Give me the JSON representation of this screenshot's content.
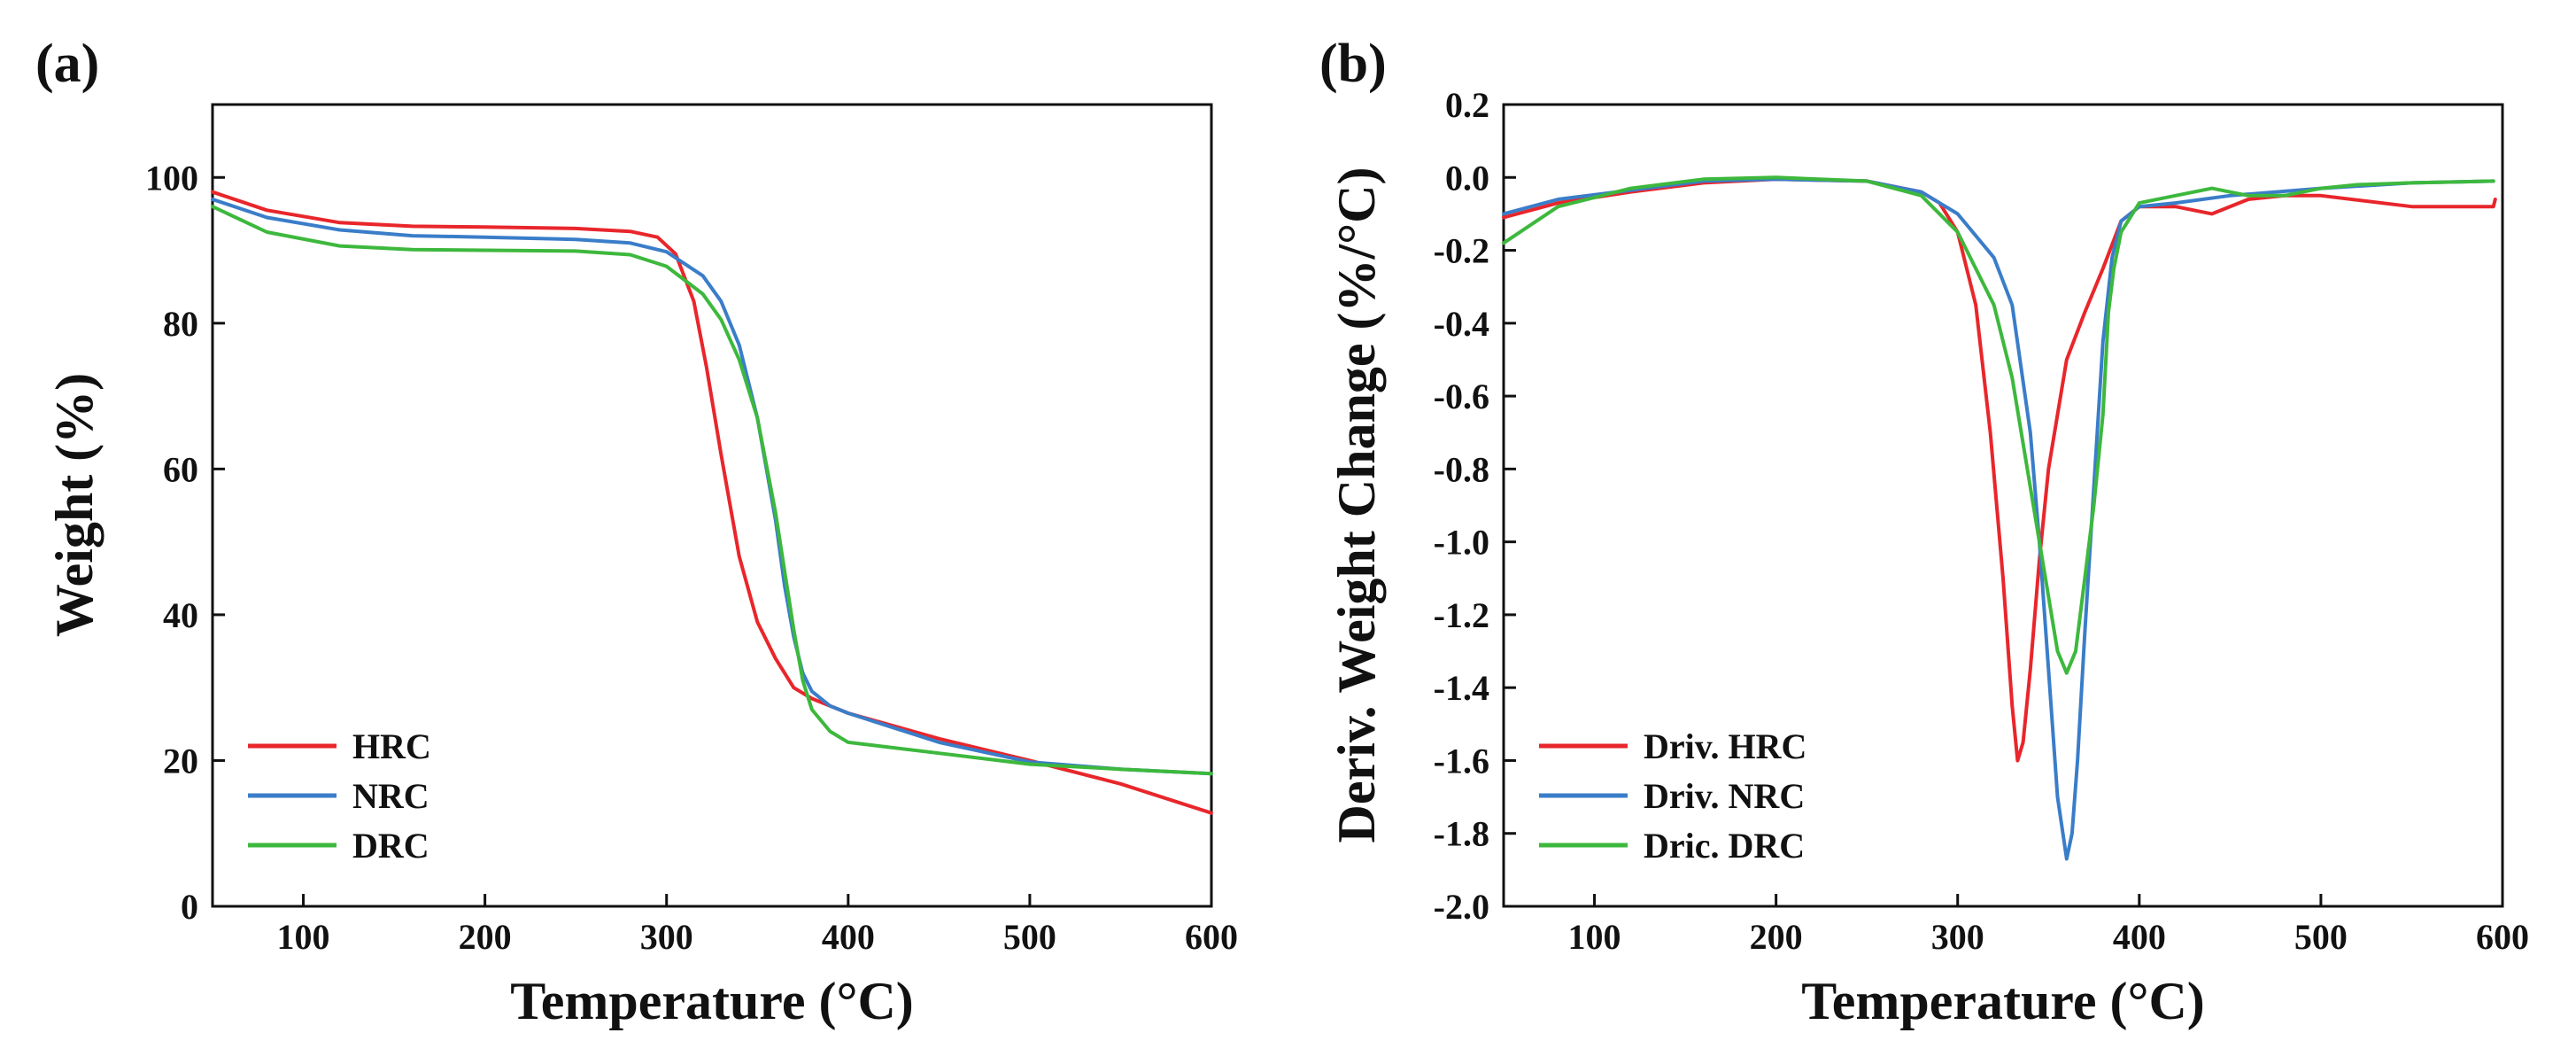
{
  "chart_data": [
    {
      "panel_label": "(a)",
      "type": "line",
      "xlabel": "Temperature (°C)",
      "ylabel": "Weight (%)",
      "xlim": [
        50,
        600
      ],
      "ylim": [
        0,
        110
      ],
      "xticks": [
        100,
        200,
        300,
        400,
        500,
        600
      ],
      "yticks": [
        0,
        20,
        40,
        60,
        80,
        100
      ],
      "legend_position": "bottom-left",
      "series": [
        {
          "name": "HRC",
          "color": "#e8262b",
          "x": [
            50,
            80,
            120,
            160,
            200,
            250,
            280,
            295,
            305,
            315,
            322,
            330,
            340,
            350,
            360,
            370,
            380,
            400,
            450,
            500,
            550,
            600
          ],
          "y": [
            98,
            95.5,
            93.8,
            93.3,
            93.2,
            93.0,
            92.6,
            91.8,
            89.5,
            83,
            74,
            62,
            48,
            39,
            34,
            30,
            28.5,
            26.5,
            23,
            20,
            16.8,
            12.8
          ]
        },
        {
          "name": "NRC",
          "color": "#3a7dc9",
          "x": [
            50,
            80,
            120,
            160,
            200,
            250,
            280,
            300,
            320,
            330,
            340,
            350,
            360,
            365,
            370,
            375,
            380,
            390,
            400,
            450,
            500,
            550,
            600
          ],
          "y": [
            97,
            94.5,
            92.8,
            92.0,
            91.8,
            91.5,
            91.0,
            89.8,
            86.5,
            83,
            77,
            67,
            53,
            44,
            37,
            32,
            29.5,
            27.5,
            26.5,
            22.5,
            19.8,
            18.8,
            18.2
          ]
        },
        {
          "name": "DRC",
          "color": "#3db83d",
          "x": [
            50,
            80,
            120,
            160,
            200,
            250,
            280,
            300,
            320,
            330,
            340,
            350,
            360,
            365,
            370,
            375,
            380,
            390,
            400,
            450,
            500,
            550,
            600
          ],
          "y": [
            96,
            92.5,
            90.6,
            90.1,
            90.0,
            89.9,
            89.4,
            87.8,
            84,
            80.5,
            75,
            67,
            54,
            46,
            38,
            31,
            27,
            24,
            22.5,
            21,
            19.5,
            18.8,
            18.2
          ]
        }
      ]
    },
    {
      "panel_label": "(b)",
      "type": "line",
      "xlabel": "Temperature (°C)",
      "ylabel": "Deriv. Weight Change (%/°C)",
      "xlim": [
        50,
        600
      ],
      "ylim": [
        -2.0,
        0.2
      ],
      "xticks": [
        100,
        200,
        300,
        400,
        500,
        600
      ],
      "yticks": [
        0.2,
        0.0,
        -0.2,
        -0.4,
        -0.6,
        -0.8,
        -1.0,
        -1.2,
        -1.4,
        -1.6,
        -1.8,
        -2.0
      ],
      "ytick_labels": [
        "0.2",
        "0.0",
        "-0.2",
        "-0.4",
        "-0.6",
        "-0.8",
        "-1.0",
        "-1.2",
        "-1.4",
        "-1.6",
        "-1.8",
        "-2.0"
      ],
      "legend_position": "bottom-left",
      "series": [
        {
          "name": "Driv. HRC",
          "color": "#e8262b",
          "x": [
            50,
            80,
            120,
            160,
            200,
            250,
            280,
            290,
            300,
            310,
            318,
            325,
            330,
            333,
            336,
            340,
            345,
            350,
            360,
            370,
            380,
            390,
            400,
            420,
            440,
            460,
            480,
            500,
            550,
            595,
            596
          ],
          "y": [
            -0.11,
            -0.07,
            -0.04,
            -0.015,
            -0.005,
            -0.01,
            -0.04,
            -0.07,
            -0.15,
            -0.35,
            -0.7,
            -1.1,
            -1.45,
            -1.6,
            -1.55,
            -1.35,
            -1.05,
            -0.8,
            -0.5,
            -0.37,
            -0.25,
            -0.12,
            -0.08,
            -0.08,
            -0.1,
            -0.06,
            -0.05,
            -0.05,
            -0.08,
            -0.08,
            -0.06
          ]
        },
        {
          "name": "Driv. NRC",
          "color": "#3a7dc9",
          "x": [
            50,
            80,
            120,
            160,
            200,
            250,
            280,
            300,
            320,
            330,
            340,
            345,
            350,
            355,
            360,
            363,
            366,
            370,
            375,
            380,
            385,
            390,
            400,
            420,
            450,
            500,
            550,
            595
          ],
          "y": [
            -0.1,
            -0.06,
            -0.035,
            -0.01,
            -0.005,
            -0.01,
            -0.04,
            -0.1,
            -0.22,
            -0.35,
            -0.7,
            -1.0,
            -1.35,
            -1.7,
            -1.87,
            -1.8,
            -1.6,
            -1.25,
            -0.85,
            -0.45,
            -0.22,
            -0.12,
            -0.08,
            -0.07,
            -0.05,
            -0.03,
            -0.015,
            -0.01
          ]
        },
        {
          "name": "Dric. DRC",
          "color": "#3db83d",
          "x": [
            50,
            80,
            120,
            160,
            200,
            250,
            280,
            300,
            320,
            330,
            340,
            350,
            355,
            360,
            365,
            370,
            375,
            380,
            383,
            386,
            390,
            400,
            420,
            440,
            460,
            480,
            500,
            520,
            550,
            595
          ],
          "y": [
            -0.18,
            -0.08,
            -0.03,
            -0.005,
            0.0,
            -0.01,
            -0.05,
            -0.15,
            -0.35,
            -0.55,
            -0.85,
            -1.15,
            -1.3,
            -1.36,
            -1.3,
            -1.1,
            -0.9,
            -0.65,
            -0.37,
            -0.25,
            -0.15,
            -0.07,
            -0.05,
            -0.03,
            -0.05,
            -0.05,
            -0.03,
            -0.02,
            -0.015,
            -0.01
          ]
        }
      ]
    }
  ]
}
